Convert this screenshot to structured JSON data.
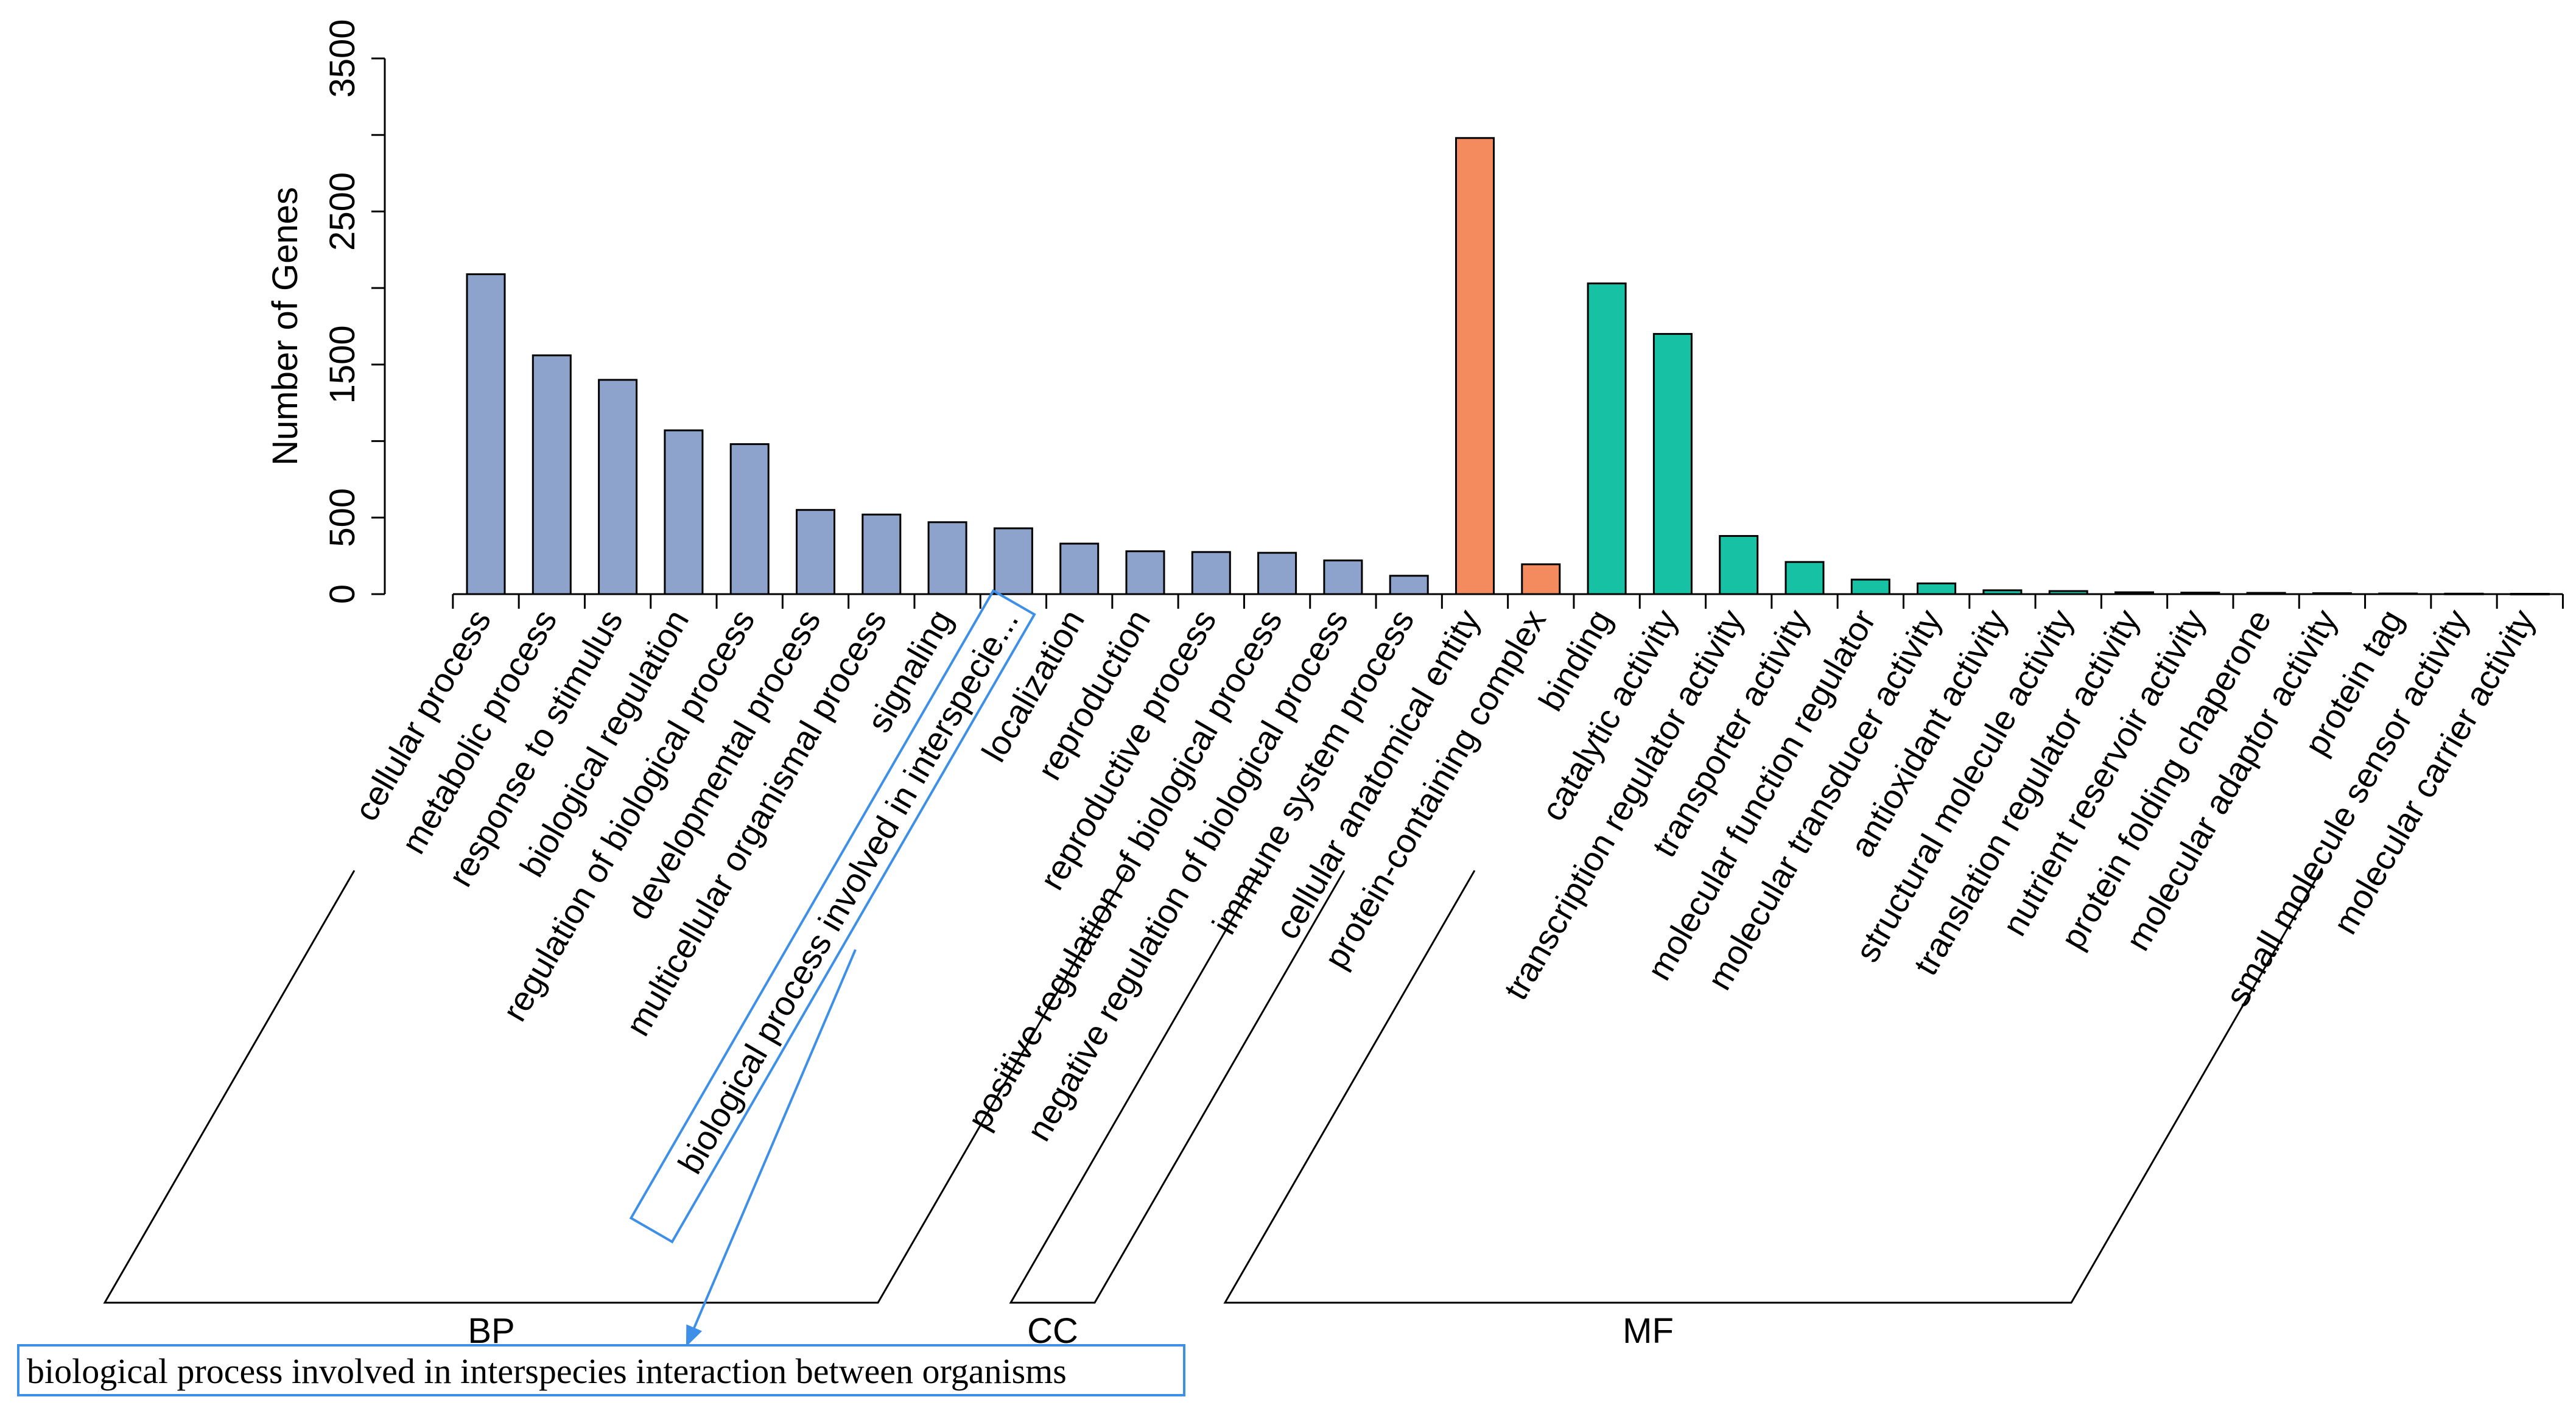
{
  "chart_data": {
    "type": "bar",
    "ylabel": "Number of Genes",
    "ylim": [
      0,
      3500
    ],
    "yticks": [
      0,
      500,
      1500,
      2500,
      3500
    ],
    "categories": [
      "cellular process",
      "metabolic process",
      "response to stimulus",
      "biological regulation",
      "regulation of biological process",
      "developmental process",
      "multicellular organismal process",
      "signaling",
      "biological process involved in interspecie...",
      "localization",
      "reproduction",
      "reproductive process",
      "positive regulation of biological process",
      "negative regulation of biological process",
      "immune system process",
      "cellular anatomical entity",
      "protein-containing complex",
      "binding",
      "catalytic activity",
      "transcription regulator activity",
      "transporter activity",
      "molecular function regulator",
      "molecular transducer activity",
      "antioxidant activity",
      "structural molecule activity",
      "translation regulator activity",
      "nutrient reservoir activity",
      "protein folding chaperone",
      "molecular adaptor activity",
      "protein tag",
      "small molecule sensor activity",
      "molecular carrier activity"
    ],
    "values": [
      2090,
      1560,
      1400,
      1070,
      980,
      550,
      520,
      470,
      430,
      330,
      280,
      275,
      270,
      220,
      120,
      2980,
      195,
      2030,
      1700,
      380,
      210,
      95,
      70,
      25,
      20,
      12,
      10,
      8,
      6,
      4,
      3,
      2
    ],
    "groups": [
      {
        "name": "BP",
        "start": 0,
        "end": 14,
        "color": "#8DA3CC"
      },
      {
        "name": "CC",
        "start": 15,
        "end": 16,
        "color": "#F48B5E"
      },
      {
        "name": "MF",
        "start": 17,
        "end": 31,
        "color": "#17C1A3"
      }
    ],
    "highlight": {
      "index": 8,
      "full_label": "biological process involved in interspecies interaction between organisms",
      "color": "#3D8FE8"
    }
  }
}
